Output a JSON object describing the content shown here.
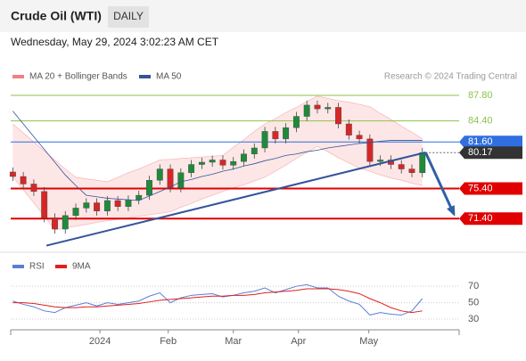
{
  "header": {
    "title": "Crude Oil (WTI)",
    "timeframe": "DAILY",
    "datetime": "Wednesday, May 29, 2024 3:02:23 AM CET"
  },
  "chart_data": [
    {
      "type": "candlestick",
      "credit": "Research © 2024 Trading Central",
      "legend": [
        {
          "name": "MA 20 + Bollinger Bands",
          "color": "#f08080"
        },
        {
          "name": "MA 50",
          "color": "#34549a"
        }
      ],
      "up_color": "#1f8a3b",
      "down_color": "#d62728",
      "xlim": [
        -0.2,
        42.5
      ],
      "ylim": [
        66.8,
        89.1
      ],
      "xticks": [
        {
          "value": 8.3,
          "label": "2024"
        },
        {
          "value": 14.8,
          "label": "Feb"
        },
        {
          "value": 21,
          "label": "Mar"
        },
        {
          "value": 27.2,
          "label": "Apr"
        },
        {
          "value": 33.9,
          "label": "May"
        }
      ],
      "open": [
        77.6,
        77.0,
        76.0,
        75.0,
        71.5,
        70.0,
        71.8,
        72.8,
        73.5,
        72.4,
        73.8,
        73.0,
        73.9,
        74.5,
        76.5,
        78.0,
        75.5,
        77.5,
        78.6,
        78.9,
        79.2,
        78.5,
        79.0,
        80.0,
        80.8,
        83.0,
        82.0,
        83.5,
        85.0,
        86.5,
        86.0,
        86.2,
        84.0,
        82.5,
        82.0,
        79.0,
        79.2,
        78.6,
        78.0,
        77.5
      ],
      "high": [
        78.2,
        77.6,
        76.6,
        75.6,
        72.1,
        72.4,
        73.4,
        74.1,
        74.1,
        74.4,
        74.4,
        74.5,
        75.1,
        77.1,
        78.6,
        78.6,
        78.1,
        79.2,
        79.5,
        79.8,
        79.8,
        79.6,
        80.6,
        81.4,
        83.6,
        83.6,
        84.1,
        85.6,
        87.1,
        87.1,
        86.8,
        86.8,
        84.6,
        83.1,
        82.6,
        79.8,
        79.8,
        79.2,
        78.6,
        80.8
      ],
      "low": [
        76.4,
        75.4,
        74.4,
        70.9,
        69.4,
        69.4,
        71.2,
        72.2,
        71.8,
        71.8,
        72.4,
        72.4,
        73.3,
        73.9,
        75.9,
        74.9,
        74.9,
        76.9,
        78.0,
        78.3,
        77.9,
        77.9,
        78.4,
        79.4,
        80.2,
        81.4,
        81.4,
        82.9,
        84.4,
        85.4,
        85.4,
        83.4,
        81.9,
        81.4,
        78.4,
        78.4,
        78.0,
        77.4,
        76.9,
        76.9
      ],
      "close": [
        77.0,
        76.0,
        75.0,
        71.5,
        70.0,
        71.8,
        72.8,
        73.5,
        72.4,
        73.8,
        73.0,
        73.9,
        74.5,
        76.5,
        78.0,
        75.5,
        77.5,
        78.6,
        78.9,
        79.2,
        78.5,
        79.0,
        80.0,
        80.8,
        83.0,
        82.0,
        83.5,
        85.0,
        86.5,
        86.0,
        86.2,
        84.0,
        82.5,
        82.0,
        79.0,
        79.2,
        78.6,
        78.0,
        77.5,
        80.17
      ],
      "bb_upper": [
        84.0,
        82.8,
        81.6,
        80.4,
        79.2,
        78.0,
        76.9,
        76.7,
        76.5,
        76.3,
        76.9,
        77.5,
        78.0,
        78.6,
        79.2,
        79.3,
        79.4,
        79.5,
        79.6,
        79.7,
        79.8,
        80.9,
        81.9,
        83.0,
        84.0,
        84.7,
        85.5,
        86.2,
        87.0,
        87.7,
        87.4,
        87.1,
        86.9,
        86.6,
        86.3,
        85.4,
        84.6,
        83.7,
        82.9,
        82.0
      ],
      "bb_lower": [
        77.0,
        75.2,
        73.5,
        71.7,
        69.9,
        70.1,
        70.4,
        70.6,
        70.9,
        71.1,
        71.3,
        71.5,
        71.7,
        71.9,
        72.1,
        72.3,
        72.9,
        73.4,
        74.0,
        74.5,
        75.0,
        75.5,
        75.9,
        76.4,
        76.9,
        77.7,
        78.5,
        79.4,
        80.2,
        81.0,
        80.3,
        79.5,
        78.8,
        78.1,
        77.7,
        77.2,
        76.8,
        76.5,
        76.1,
        75.8
      ],
      "ma50": [
        85.7,
        84.0,
        82.3,
        80.6,
        78.9,
        77.2,
        75.8,
        74.5,
        74.3,
        74.1,
        74.0,
        73.9,
        73.8,
        74.4,
        75.0,
        75.6,
        76.3,
        76.6,
        77.0,
        77.3,
        77.7,
        78.0,
        78.4,
        78.7,
        79.1,
        79.4,
        79.8,
        80.0,
        80.3,
        80.5,
        80.8,
        81.0,
        81.2,
        81.4,
        81.5,
        81.7,
        81.8,
        81.8,
        81.8,
        81.8
      ],
      "levels": [
        {
          "value": 87.8,
          "label": "87.80",
          "color": "#8bc34a",
          "style": "text"
        },
        {
          "value": 84.4,
          "label": "84.40",
          "color": "#8bc34a",
          "style": "text"
        },
        {
          "value": 81.6,
          "label": "81.60",
          "color": "#2f6fe0",
          "style": "box"
        },
        {
          "value": 80.17,
          "label": "80.17",
          "color": "#333333",
          "style": "last"
        },
        {
          "value": 75.4,
          "label": "75.40",
          "color": "#e00000",
          "style": "box"
        },
        {
          "value": 71.4,
          "label": "71.40",
          "color": "#e00000",
          "style": "box"
        }
      ],
      "trendline": {
        "x": [
          3.2,
          39.3
        ],
        "y": [
          67.8,
          80.2
        ],
        "color": "#34549a"
      },
      "forecast": {
        "x": [
          39.3,
          42
        ],
        "y": [
          80.2,
          72
        ],
        "color": "#2f5fa8"
      }
    },
    {
      "type": "line",
      "xlim": [
        -0.2,
        42.5
      ],
      "ylim": [
        17,
        93
      ],
      "yticks": [
        70,
        50,
        30
      ],
      "series": [
        {
          "name": "RSI",
          "color": "#5b7fd6",
          "values": [
            52,
            48,
            45,
            40,
            38,
            44,
            47,
            50,
            46,
            50,
            48,
            50,
            52,
            58,
            62,
            50,
            56,
            59,
            60,
            61,
            57,
            59,
            62,
            64,
            68,
            62,
            66,
            70,
            72,
            68,
            68,
            58,
            52,
            48,
            35,
            38,
            36,
            35,
            40,
            55
          ]
        },
        {
          "name": "9MA",
          "color": "#e02020",
          "values": [
            50,
            50,
            49,
            47,
            45,
            44,
            44,
            45,
            45,
            46,
            47,
            48,
            49,
            51,
            53,
            54,
            55,
            56,
            57,
            58,
            58,
            59,
            59,
            60,
            62,
            63,
            64,
            65,
            67,
            67,
            67,
            66,
            64,
            61,
            55,
            50,
            44,
            40,
            38,
            40
          ]
        }
      ]
    }
  ]
}
